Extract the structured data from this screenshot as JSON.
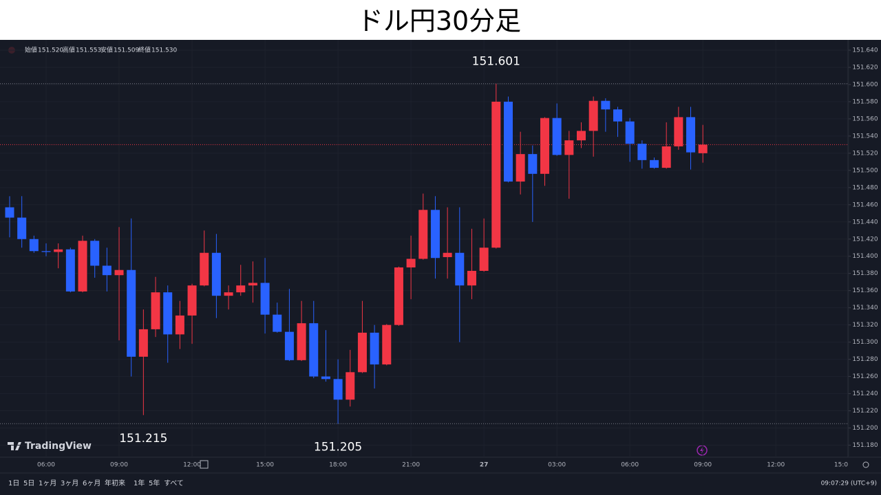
{
  "chart_data": {
    "type": "candlestick",
    "title": "ドル円30分足",
    "ohlc_legend": [
      {
        "label": "始値",
        "value": "151.520"
      },
      {
        "label": "高値",
        "value": "151.553"
      },
      {
        "label": "安値",
        "value": "151.509"
      },
      {
        "label": "終値",
        "value": "151.530"
      }
    ],
    "categories": [
      null,
      null,
      null,
      "06:00",
      null,
      null,
      null,
      null,
      null,
      "09:00",
      null,
      null,
      null,
      null,
      null,
      "12:00",
      null,
      null,
      null,
      null,
      null,
      "15:00",
      null,
      null,
      null,
      null,
      null,
      "18:00",
      null,
      null,
      null,
      null,
      null,
      "21:00",
      null,
      null,
      null,
      null,
      null,
      "27",
      null,
      null,
      null,
      null,
      null,
      "03:00",
      null,
      null,
      null,
      null,
      null,
      "06:00",
      null,
      null,
      null,
      null,
      null,
      "09:00"
    ],
    "future_ticks": [
      "12:00",
      "15:0"
    ],
    "series": {
      "open": [
        151.457,
        151.445,
        151.42,
        151.406,
        151.405,
        151.408,
        151.359,
        151.418,
        151.389,
        151.378,
        151.384,
        151.283,
        151.315,
        151.358,
        151.309,
        151.331,
        151.366,
        151.404,
        151.354,
        151.358,
        151.366,
        151.369,
        151.332,
        151.312,
        151.279,
        151.322,
        151.26,
        151.257,
        151.233,
        151.265,
        151.311,
        151.274,
        151.32,
        151.387,
        151.397,
        151.454,
        151.399,
        151.404,
        151.366,
        151.383,
        151.41,
        151.58,
        151.487,
        151.519,
        151.496,
        151.561,
        151.518,
        151.535,
        151.546,
        151.581,
        151.571,
        151.557,
        151.531,
        151.512,
        151.503,
        151.528,
        151.562,
        151.52
      ],
      "high": [
        151.47,
        151.47,
        151.424,
        151.415,
        151.415,
        151.41,
        151.424,
        151.42,
        151.41,
        151.434,
        151.444,
        151.338,
        151.376,
        151.366,
        151.348,
        151.368,
        151.43,
        151.426,
        151.366,
        151.39,
        151.394,
        151.398,
        151.346,
        151.362,
        151.348,
        151.348,
        151.314,
        151.28,
        151.291,
        151.348,
        151.32,
        151.321,
        151.388,
        151.424,
        151.473,
        151.47,
        151.457,
        151.457,
        151.432,
        151.444,
        151.601,
        151.586,
        151.545,
        151.529,
        151.562,
        151.578,
        151.546,
        151.556,
        151.586,
        151.584,
        151.574,
        151.561,
        151.535,
        151.515,
        151.556,
        151.574,
        151.574,
        151.553
      ],
      "low": [
        151.422,
        151.41,
        151.404,
        151.4,
        151.386,
        151.358,
        151.358,
        151.375,
        151.359,
        151.302,
        151.26,
        151.215,
        151.306,
        151.276,
        151.292,
        151.298,
        151.365,
        151.328,
        151.338,
        151.354,
        151.346,
        151.31,
        151.311,
        151.278,
        151.278,
        151.258,
        151.254,
        151.205,
        151.225,
        151.264,
        151.246,
        151.273,
        151.319,
        151.35,
        151.396,
        151.374,
        151.374,
        151.3,
        151.35,
        151.382,
        151.409,
        151.486,
        151.472,
        151.44,
        151.482,
        151.517,
        151.467,
        151.526,
        151.516,
        151.545,
        151.539,
        151.51,
        151.502,
        151.502,
        151.502,
        151.524,
        151.501,
        151.509
      ],
      "close": [
        151.445,
        151.42,
        151.406,
        151.405,
        151.408,
        151.359,
        151.418,
        151.389,
        151.378,
        151.384,
        151.283,
        151.315,
        151.358,
        151.309,
        151.331,
        151.366,
        151.404,
        151.354,
        151.358,
        151.366,
        151.369,
        151.332,
        151.312,
        151.279,
        151.322,
        151.26,
        151.257,
        151.233,
        151.265,
        151.311,
        151.274,
        151.32,
        151.387,
        151.397,
        151.454,
        151.398,
        151.404,
        151.366,
        151.383,
        151.41,
        151.58,
        151.487,
        151.519,
        151.496,
        151.561,
        151.518,
        151.535,
        151.546,
        151.581,
        151.571,
        151.557,
        151.531,
        151.512,
        151.503,
        151.528,
        151.562,
        151.521,
        151.53
      ]
    },
    "up_color": "#f23645",
    "down_color": "#2962ff",
    "last_price_line_color": "#f23645",
    "ylim": [
      151.166,
      151.652
    ],
    "yticks": [
      {
        "value": 151.18,
        "label": "151.180"
      },
      {
        "value": 151.2,
        "label": "151.200"
      },
      {
        "value": 151.22,
        "label": "151.220"
      },
      {
        "value": 151.24,
        "label": "151.240"
      },
      {
        "value": 151.26,
        "label": "151.260"
      },
      {
        "value": 151.28,
        "label": "151.280"
      },
      {
        "value": 151.3,
        "label": "151.300"
      },
      {
        "value": 151.32,
        "label": "151.320"
      },
      {
        "value": 151.34,
        "label": "151.340"
      },
      {
        "value": 151.36,
        "label": "151.360"
      },
      {
        "value": 151.38,
        "label": "151.380"
      },
      {
        "value": 151.4,
        "label": "151.400"
      },
      {
        "value": 151.42,
        "label": "151.420"
      },
      {
        "value": 151.44,
        "label": "151.440"
      },
      {
        "value": 151.46,
        "label": "151.460"
      },
      {
        "value": 151.48,
        "label": "151.480"
      },
      {
        "value": 151.5,
        "label": "151.500"
      },
      {
        "value": 151.52,
        "label": "151.520"
      },
      {
        "value": 151.54,
        "label": "151.540"
      },
      {
        "value": 151.56,
        "label": "151.560"
      },
      {
        "value": 151.58,
        "label": "151.580"
      },
      {
        "value": 151.6,
        "label": "151.600"
      },
      {
        "value": 151.62,
        "label": "151.620"
      },
      {
        "value": 151.64,
        "label": "151.640"
      }
    ],
    "grid": true,
    "annotations": [
      {
        "label": "151.601",
        "value": 151.601,
        "line": true
      },
      {
        "label": "151.215",
        "value": 151.215,
        "line": false
      },
      {
        "label": "151.205",
        "value": 151.205,
        "line": true
      }
    ],
    "brand": "TradingView",
    "ranges": [
      "1日",
      "5日",
      "1ヶ月",
      "3ヶ月",
      "6ヶ月",
      "年初来",
      "1年",
      "5年",
      "すべて"
    ],
    "clock": "09:07:29 (UTC+9)"
  }
}
